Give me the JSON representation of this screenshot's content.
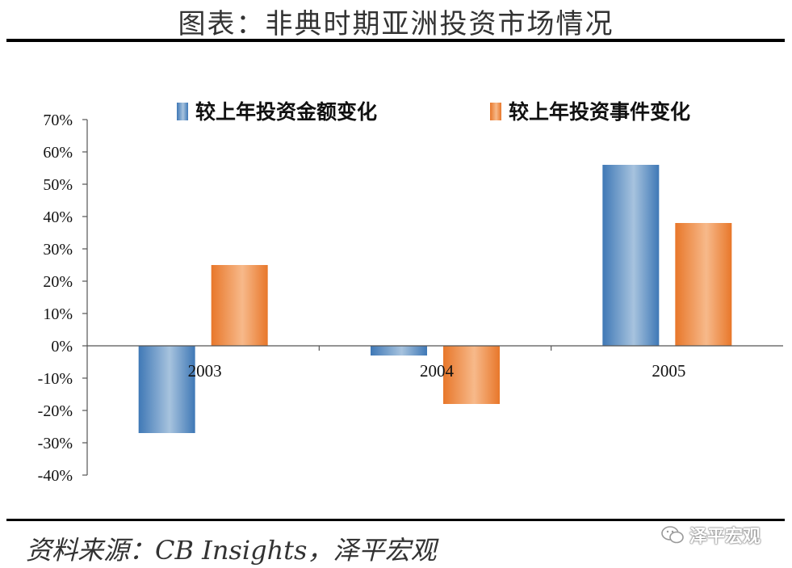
{
  "header": {
    "title": "图表：非典时期亚洲投资市场情况"
  },
  "footer": {
    "source": "资料来源：CB Insights，泽平宏观",
    "watermark": "泽平宏观"
  },
  "chart_data": {
    "type": "bar",
    "categories": [
      "2003",
      "2004",
      "2005"
    ],
    "series": [
      {
        "name": "较上年投资金额变化",
        "values": [
          -27,
          -3,
          56
        ],
        "color": "#4a86c0"
      },
      {
        "name": "较上年投资事件变化",
        "values": [
          25,
          -18,
          38
        ],
        "color": "#ee8336"
      }
    ],
    "ylim": [
      -40,
      70
    ],
    "yticks": [
      "70%",
      "60%",
      "50%",
      "40%",
      "30%",
      "20%",
      "10%",
      "0%",
      "-10%",
      "-20%",
      "-30%",
      "-40%"
    ],
    "legend_position": "top",
    "grid": false
  }
}
